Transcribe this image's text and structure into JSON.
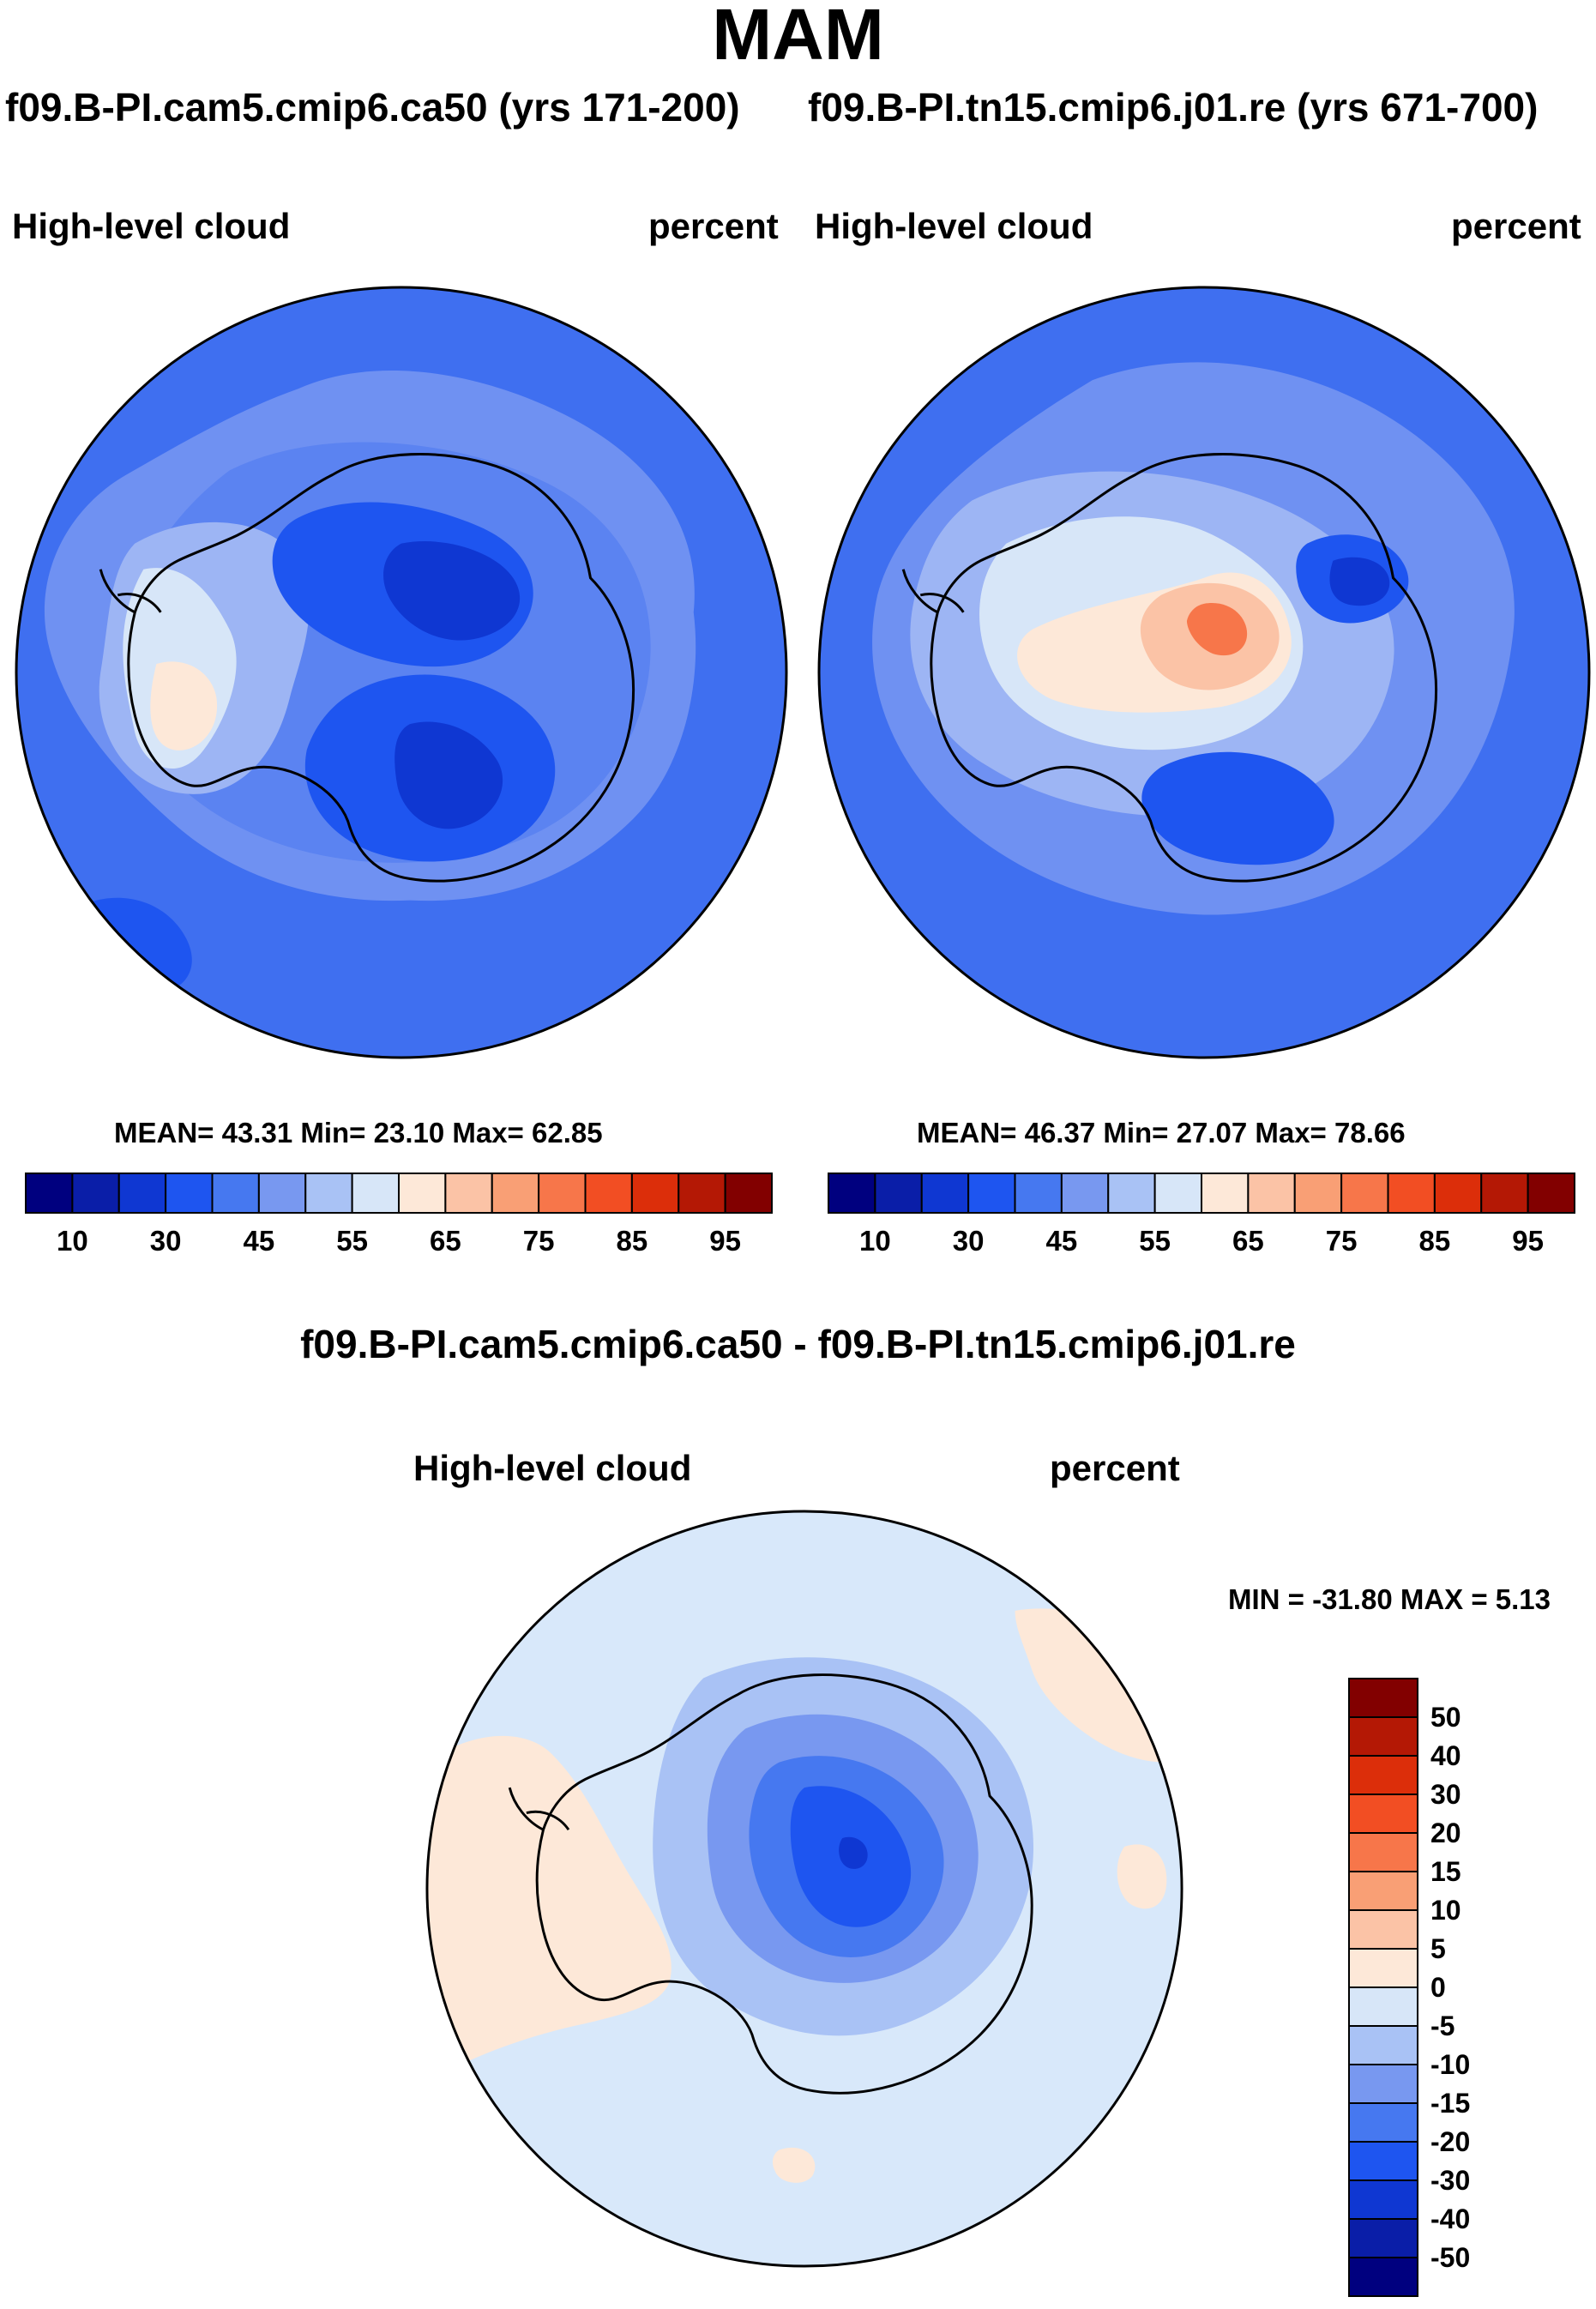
{
  "figure": {
    "season": "MAM",
    "case1_title": "f09.B-PI.cam5.cmip6.ca50 (yrs 171-200)",
    "case2_title": "f09.B-PI.tn15.cmip6.j01.re (yrs 671-700)",
    "diff_title": "f09.B-PI.cam5.cmip6.ca50 - f09.B-PI.tn15.cmip6.j01.re"
  },
  "panel_left": {
    "variable": "High-level cloud",
    "units": "percent",
    "stats_text": "MEAN=  43.31  Min=  23.10  Max=  62.85"
  },
  "panel_right": {
    "variable": "High-level cloud",
    "units": "percent",
    "stats_text": "MEAN=  46.37  Min=  27.07  Max=  78.66"
  },
  "panel_diff": {
    "variable": "High-level cloud",
    "units": "percent",
    "stats_text": "MIN = -31.80 MAX =    5.13"
  },
  "colorbar_abs": {
    "colors": [
      "#00007f",
      "#0a1ea8",
      "#0f37d2",
      "#1e55f0",
      "#4678f0",
      "#7898f0",
      "#a9c2f5",
      "#d7e6f8",
      "#fde8d8",
      "#fbc3a6",
      "#f99f75",
      "#f7764a",
      "#f24e23",
      "#dc2e0a",
      "#b41805",
      "#820000"
    ],
    "tick_labels": [
      "10",
      "30",
      "45",
      "55",
      "65",
      "75",
      "85",
      "95"
    ],
    "tick_boundaries": [
      1,
      3,
      5,
      7,
      9,
      11,
      13,
      15
    ]
  },
  "colorbar_diff": {
    "colors": [
      "#820000",
      "#b41805",
      "#dc2e0a",
      "#f24e23",
      "#f7764a",
      "#f99f75",
      "#fbc3a6",
      "#fde8d8",
      "#d7e6f8",
      "#a9c2f5",
      "#7898f0",
      "#4678f0",
      "#1e55f0",
      "#0f37d2",
      "#0a1ea8",
      "#00007f"
    ],
    "tick_labels": [
      "50",
      "40",
      "30",
      "20",
      "15",
      "10",
      "5",
      "0",
      "-5",
      "-10",
      "-15",
      "-20",
      "-30",
      "-40",
      "-50"
    ]
  },
  "palette": {
    "ocean_abs": "#3f6ff0",
    "ocean_abs_light": "#6f91f2",
    "ocean_diff": "#d8e8fa",
    "positive_diff": "#fde8d8",
    "coast": "#000000"
  }
}
